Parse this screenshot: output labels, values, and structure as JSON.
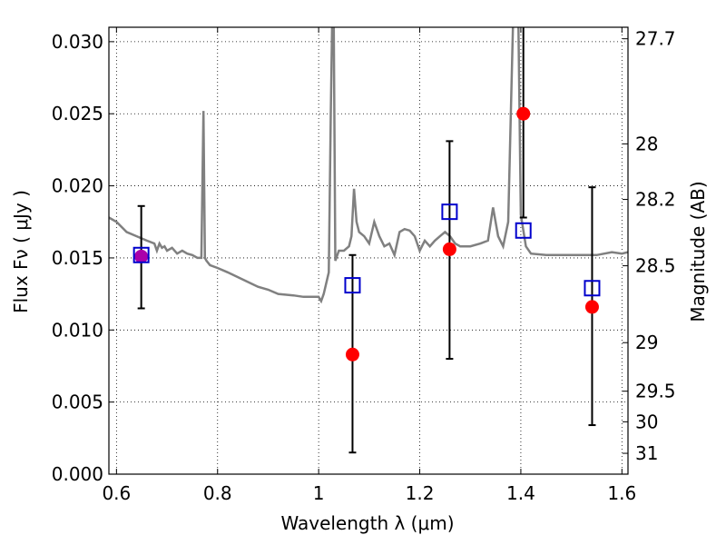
{
  "chart_data": {
    "type": "scatter",
    "title": "",
    "xlabel": "Wavelength  λ (μm)",
    "ylabel": "Flux  Fν  ( μJy )",
    "y2label": "Magnitude (AB)",
    "xlim": [
      0.585,
      1.612
    ],
    "ylim": [
      0.0,
      0.031
    ],
    "grid": true,
    "x_ticks": [
      {
        "value": 0.6,
        "label": "0.6"
      },
      {
        "value": 0.8,
        "label": "0.8"
      },
      {
        "value": 1.0,
        "label": "1"
      },
      {
        "value": 1.2,
        "label": "1.2"
      },
      {
        "value": 1.4,
        "label": "1.4"
      },
      {
        "value": 1.6,
        "label": "1.6"
      }
    ],
    "y_ticks": [
      {
        "value": 0.0,
        "label": "0.000"
      },
      {
        "value": 0.005,
        "label": "0.005"
      },
      {
        "value": 0.01,
        "label": "0.010"
      },
      {
        "value": 0.015,
        "label": "0.015"
      },
      {
        "value": 0.02,
        "label": "0.020"
      },
      {
        "value": 0.025,
        "label": "0.025"
      },
      {
        "value": 0.03,
        "label": "0.030"
      }
    ],
    "magnitude_ticks": [
      {
        "mag": 27.7,
        "label": "27.7"
      },
      {
        "mag": 28.0,
        "label": "28"
      },
      {
        "mag": 28.2,
        "label": "28.2"
      },
      {
        "mag": 28.5,
        "label": "28.5"
      },
      {
        "mag": 29.0,
        "label": "29"
      },
      {
        "mag": 29.5,
        "label": "29.5"
      },
      {
        "mag": 30.0,
        "label": "30"
      },
      {
        "mag": 31.0,
        "label": "31"
      }
    ],
    "series": [
      {
        "kind": "line",
        "color": "#808080",
        "x": [
          0.585,
          0.6,
          0.62,
          0.64,
          0.66,
          0.675,
          0.68,
          0.685,
          0.69,
          0.695,
          0.7,
          0.71,
          0.72,
          0.73,
          0.74,
          0.75,
          0.76,
          0.768,
          0.772,
          0.775,
          0.778,
          0.785,
          0.8,
          0.82,
          0.85,
          0.88,
          0.9,
          0.92,
          0.95,
          0.97,
          1.0,
          1.005,
          1.01,
          1.02,
          1.024,
          1.027,
          1.03,
          1.033,
          1.04,
          1.05,
          1.06,
          1.065,
          1.07,
          1.075,
          1.08,
          1.09,
          1.1,
          1.11,
          1.12,
          1.13,
          1.14,
          1.15,
          1.16,
          1.17,
          1.18,
          1.19,
          1.2,
          1.21,
          1.22,
          1.23,
          1.24,
          1.25,
          1.26,
          1.27,
          1.28,
          1.3,
          1.32,
          1.335,
          1.345,
          1.355,
          1.365,
          1.375,
          1.385,
          1.39,
          1.395,
          1.4,
          1.41,
          1.42,
          1.45,
          1.5,
          1.55,
          1.58,
          1.6,
          1.612
        ],
        "y": [
          0.0178,
          0.0175,
          0.0168,
          0.0165,
          0.0162,
          0.016,
          0.0155,
          0.016,
          0.0157,
          0.0158,
          0.0155,
          0.0157,
          0.0153,
          0.0155,
          0.0153,
          0.0152,
          0.015,
          0.015,
          0.0252,
          0.015,
          0.0148,
          0.0145,
          0.0143,
          0.014,
          0.0135,
          0.013,
          0.0128,
          0.0125,
          0.0124,
          0.0123,
          0.0123,
          0.012,
          0.0125,
          0.014,
          0.025,
          0.032,
          0.031,
          0.0148,
          0.0155,
          0.0155,
          0.0158,
          0.0165,
          0.0198,
          0.0175,
          0.0168,
          0.0165,
          0.016,
          0.0175,
          0.0165,
          0.0158,
          0.016,
          0.0152,
          0.0168,
          0.017,
          0.0169,
          0.0165,
          0.0155,
          0.0162,
          0.0158,
          0.0162,
          0.0165,
          0.0168,
          0.0165,
          0.016,
          0.0158,
          0.0158,
          0.016,
          0.0162,
          0.0185,
          0.0165,
          0.0158,
          0.0175,
          0.032,
          0.032,
          0.032,
          0.018,
          0.0158,
          0.0153,
          0.0152,
          0.0152,
          0.0152,
          0.0154,
          0.0153,
          0.0154
        ]
      },
      {
        "kind": "scatter",
        "marker": "filled-circle",
        "color": "#ff0000",
        "points": [
          {
            "x": 0.649,
            "y": 0.0151,
            "err_low": 0.0115,
            "err_high": 0.0186
          },
          {
            "x": 1.067,
            "y": 0.0083,
            "err_low": 0.0015,
            "err_high": 0.0152
          },
          {
            "x": 1.259,
            "y": 0.0156,
            "err_low": 0.008,
            "err_high": 0.0231
          },
          {
            "x": 1.405,
            "y": 0.025,
            "err_low": 0.0178,
            "err_high": 0.032
          },
          {
            "x": 1.541,
            "y": 0.0116,
            "err_low": 0.0034,
            "err_high": 0.0199
          }
        ]
      },
      {
        "kind": "scatter",
        "marker": "open-square",
        "color": "#0000cc",
        "points": [
          {
            "x": 0.649,
            "y": 0.0152
          },
          {
            "x": 1.067,
            "y": 0.0131
          },
          {
            "x": 1.259,
            "y": 0.0182
          },
          {
            "x": 1.405,
            "y": 0.0169
          },
          {
            "x": 1.541,
            "y": 0.0129
          }
        ]
      }
    ],
    "overlap_color": "#aa00aa"
  }
}
